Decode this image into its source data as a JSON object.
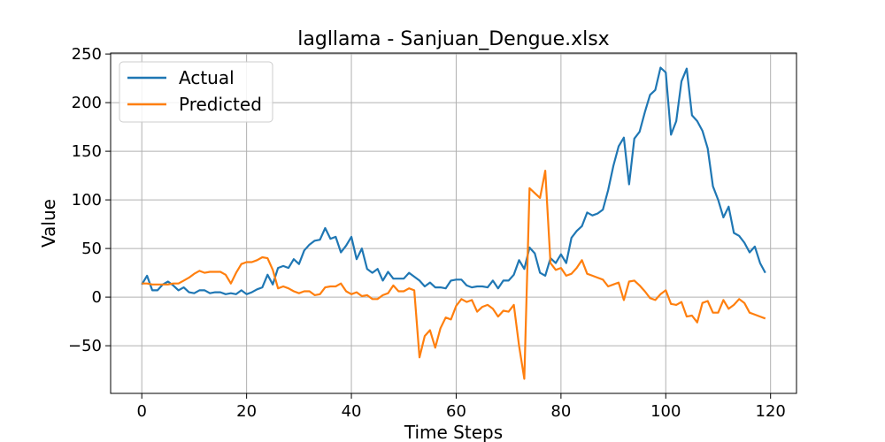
{
  "chart_data": {
    "type": "line",
    "title": "lagllama - Sanjuan_Dengue.xlsx",
    "xlabel": "Time Steps",
    "ylabel": "Value",
    "xlim": [
      -5.95,
      124.95
    ],
    "ylim": [
      -99,
      251
    ],
    "xticks": [
      0,
      20,
      40,
      60,
      80,
      100,
      120
    ],
    "yticks": [
      -50,
      0,
      50,
      100,
      150,
      200,
      250
    ],
    "grid": true,
    "legend_position": "top-left",
    "series": [
      {
        "name": "Actual",
        "color": "#1f77b4",
        "values": [
          13,
          22,
          7,
          7,
          13,
          16,
          12,
          7,
          10,
          5,
          4,
          7,
          7,
          4,
          5,
          5,
          3,
          4,
          3,
          7,
          3,
          5,
          8,
          10,
          23,
          13,
          30,
          32,
          30,
          39,
          34,
          48,
          54,
          58,
          59,
          71,
          60,
          62,
          46,
          53,
          62,
          39,
          50,
          29,
          25,
          29,
          17,
          26,
          19,
          19,
          19,
          25,
          21,
          17,
          11,
          15,
          10,
          10,
          9,
          17,
          18,
          18,
          12,
          10,
          11,
          11,
          10,
          17,
          9,
          17,
          17,
          23,
          38,
          29,
          51,
          45,
          25,
          22,
          40,
          35,
          44,
          35,
          61,
          68,
          73,
          87,
          84,
          86,
          90,
          110,
          135,
          155,
          164,
          116,
          163,
          170,
          190,
          208,
          213,
          236,
          231,
          167,
          181,
          222,
          235,
          187,
          181,
          171,
          153,
          114,
          100,
          82,
          93,
          66,
          63,
          56,
          46,
          52,
          35,
          25
        ]
      },
      {
        "name": "Predicted",
        "color": "#ff7f0e",
        "values": [
          14,
          14,
          13,
          13,
          13,
          13,
          14,
          14,
          17,
          20,
          24,
          27,
          25,
          26,
          26,
          26,
          23,
          14,
          25,
          34,
          36,
          36,
          38,
          41,
          40,
          28,
          9,
          11,
          9,
          6,
          4,
          6,
          6,
          2,
          3,
          10,
          11,
          11,
          14,
          6,
          3,
          5,
          1,
          2,
          -2,
          -2,
          2,
          4,
          12,
          6,
          6,
          9,
          7,
          -62,
          -40,
          -34,
          -52,
          -32,
          -21,
          -23,
          -9,
          -2,
          -5,
          -3,
          -15,
          -10,
          -8,
          -12,
          -20,
          -14,
          -15,
          -8,
          -50,
          -84,
          112,
          107,
          102,
          130,
          35,
          28,
          30,
          22,
          24,
          30,
          38,
          24,
          22,
          20,
          18,
          11,
          13,
          15,
          -3,
          16,
          17,
          12,
          6,
          -1,
          -3,
          3,
          7,
          -7,
          -8,
          -5,
          -20,
          -19,
          -26,
          -6,
          -4,
          -16,
          -16,
          -3,
          -12,
          -8,
          -2,
          -6,
          -16,
          -18,
          -20,
          -22
        ]
      }
    ]
  }
}
